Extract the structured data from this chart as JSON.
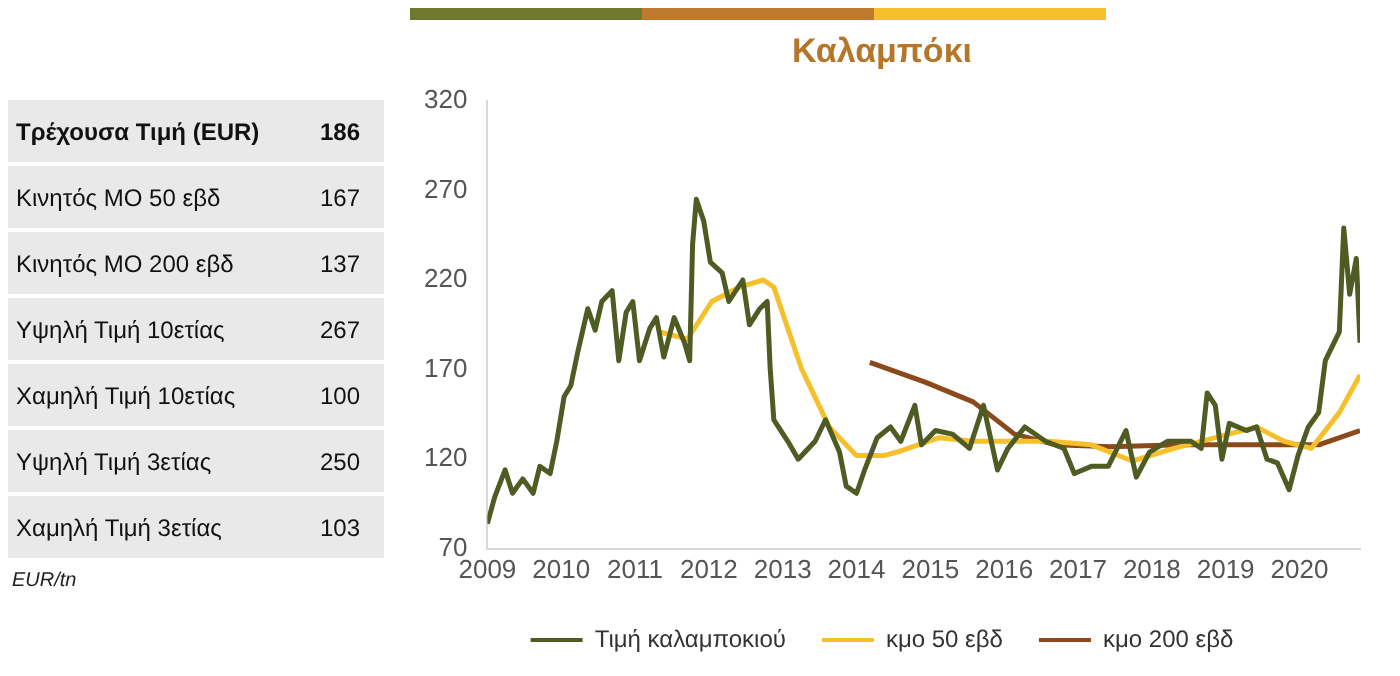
{
  "chart_data": [
    {
      "type": "other",
      "categories": [
        "Τρέχουσα Τιμή (EUR)",
        "Κινητός ΜΟ 50 εβδ",
        "Κινητός ΜΟ 200 εβδ",
        "Υψηλή Τιμή 10ετίας",
        "Χαμηλή Τιμή 10ετίας",
        "Υψηλή Τιμή 3ετίας",
        "Χαμηλή Τιμή 3ετίας"
      ],
      "values": [
        186,
        167,
        137,
        267,
        100,
        250,
        103
      ],
      "data_labels": true,
      "annotations": [
        "EUR/tn"
      ]
    },
    {
      "type": "line",
      "title": "Καλαμπόκι",
      "xlim": [
        2009,
        2020.82
      ],
      "xticks": [
        2009,
        2010,
        2011,
        2012,
        2013,
        2014,
        2015,
        2016,
        2017,
        2018,
        2019,
        2020
      ],
      "ylim": [
        70,
        320
      ],
      "yticks": [
        70,
        120,
        170,
        220,
        270,
        320
      ],
      "grid": false,
      "legend": "bottom",
      "series": [
        {
          "name": "Τιμή καλαμποκιού",
          "color": "#4e5b23",
          "x": [
            2009.0,
            2009.1,
            2009.24,
            2009.34,
            2009.48,
            2009.62,
            2009.71,
            2009.85,
            2009.94,
            2010.04,
            2010.13,
            2010.22,
            2010.36,
            2010.46,
            2010.55,
            2010.69,
            2010.78,
            2010.88,
            2010.97,
            2011.06,
            2011.2,
            2011.29,
            2011.39,
            2011.53,
            2011.67,
            2011.74,
            2011.78,
            2011.83,
            2011.93,
            2012.02,
            2012.18,
            2012.27,
            2012.46,
            2012.55,
            2012.69,
            2012.79,
            2012.83,
            2012.88,
            2013.07,
            2013.21,
            2013.44,
            2013.58,
            2013.77,
            2013.86,
            2014.0,
            2014.11,
            2014.28,
            2014.46,
            2014.6,
            2014.79,
            2014.88,
            2015.07,
            2015.3,
            2015.53,
            2015.72,
            2015.91,
            2016.05,
            2016.28,
            2016.56,
            2016.81,
            2016.95,
            2017.18,
            2017.41,
            2017.65,
            2017.79,
            2017.97,
            2018.21,
            2018.53,
            2018.67,
            2018.75,
            2018.86,
            2018.95,
            2019.05,
            2019.28,
            2019.42,
            2019.56,
            2019.7,
            2019.86,
            2019.98,
            2020.12,
            2020.26,
            2020.35,
            2020.54,
            2020.6,
            2020.68,
            2020.77,
            2020.82
          ],
          "values": [
            84,
            99,
            114,
            101,
            109,
            101,
            116,
            112,
            130,
            155,
            161,
            179,
            204,
            192,
            208,
            214,
            175,
            202,
            208,
            175,
            193,
            199,
            177,
            199,
            185,
            175,
            240,
            265,
            253,
            230,
            224,
            208,
            220,
            195,
            204,
            208,
            171,
            142,
            130,
            120,
            130,
            142,
            124,
            105,
            101,
            114,
            132,
            138,
            130,
            150,
            128,
            136,
            134,
            126,
            150,
            114,
            126,
            138,
            130,
            126,
            112,
            116,
            116,
            136,
            110,
            124,
            130,
            130,
            126,
            157,
            150,
            120,
            140,
            136,
            138,
            120,
            118,
            103,
            122,
            138,
            146,
            175,
            191,
            249,
            212,
            232,
            185
          ]
        },
        {
          "name": "κμο 50 εβδ",
          "color": "#f5c02c",
          "x": [
            2011.34,
            2011.71,
            2012.04,
            2012.41,
            2012.74,
            2012.88,
            2013.25,
            2013.63,
            2014.0,
            2014.37,
            2014.55,
            2015.12,
            2015.58,
            2016.05,
            2016.61,
            2017.18,
            2017.74,
            2018.3,
            2018.86,
            2019.42,
            2019.79,
            2020.16,
            2020.54,
            2020.82
          ],
          "values": [
            191,
            187,
            208,
            216,
            220,
            216,
            171,
            138,
            122,
            122,
            124,
            132,
            130,
            130,
            130,
            128,
            119,
            126,
            132,
            138,
            130,
            126,
            146,
            167
          ]
        },
        {
          "name": "κμο 200 εβδ",
          "color": "#8b4a1c",
          "x": [
            2014.18,
            2014.93,
            2015.58,
            2016.14,
            2016.7,
            2017.44,
            2018.4,
            2019.33,
            2020.26,
            2020.82
          ],
          "values": [
            174,
            163,
            152,
            134,
            128,
            127,
            128,
            128,
            128,
            136
          ]
        }
      ]
    }
  ]
}
